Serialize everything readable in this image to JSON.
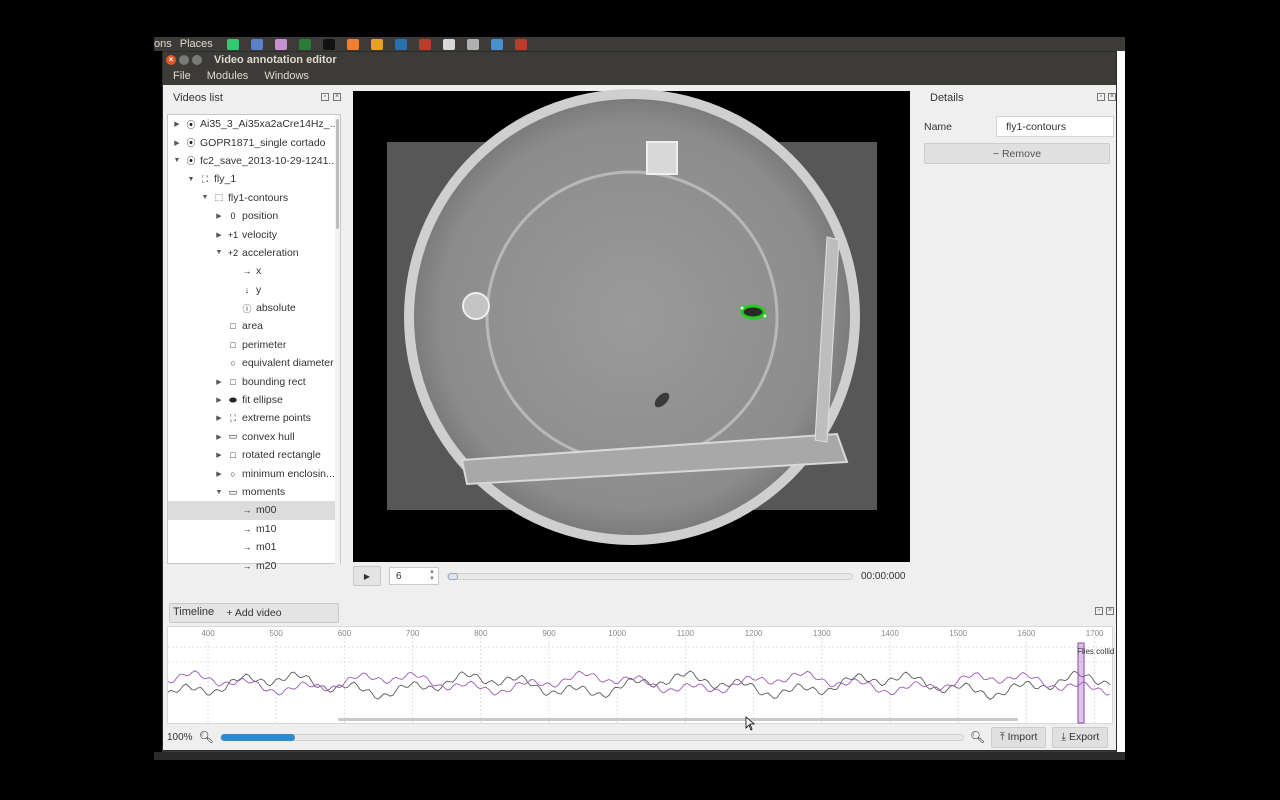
{
  "top_panel": {
    "menus": [
      "ons",
      "Places"
    ]
  },
  "window": {
    "title": "Video annotation editor"
  },
  "menubar": {
    "items": [
      "File",
      "Modules",
      "Windows"
    ]
  },
  "videos_panel": {
    "title": "Videos list",
    "add_video_label": "+ Add video",
    "tree": [
      {
        "label": "Ai35_3_Ai35xa2aCre14Hz_...",
        "depth": 0,
        "arrow": "right",
        "icon": "target-icon"
      },
      {
        "label": "GOPR1871_single cortado",
        "depth": 0,
        "arrow": "right",
        "icon": "target-icon"
      },
      {
        "label": "fc2_save_2013-10-29-1241...",
        "depth": 0,
        "arrow": "down",
        "icon": "target-icon"
      },
      {
        "label": "fly_1",
        "depth": 1,
        "arrow": "down",
        "icon": "fly-icon"
      },
      {
        "label": "fly1-contours",
        "depth": 2,
        "arrow": "down",
        "icon": "contour-icon"
      },
      {
        "label": "position",
        "depth": 3,
        "arrow": "right",
        "icon": "zero-icon"
      },
      {
        "label": "velocity",
        "depth": 3,
        "arrow": "right",
        "icon": "plus-one-icon"
      },
      {
        "label": "acceleration",
        "depth": 3,
        "arrow": "down",
        "icon": "plus-two-icon"
      },
      {
        "label": "x",
        "depth": 4,
        "arrow": "",
        "icon": "arrow-right-icon"
      },
      {
        "label": "y",
        "depth": 4,
        "arrow": "",
        "icon": "arrow-down-icon"
      },
      {
        "label": "absolute",
        "depth": 4,
        "arrow": "",
        "icon": "absolute-icon"
      },
      {
        "label": "area",
        "depth": 3,
        "arrow": "",
        "icon": "square-icon"
      },
      {
        "label": "perimeter",
        "depth": 3,
        "arrow": "",
        "icon": "square-icon"
      },
      {
        "label": "equivalent diameter",
        "depth": 3,
        "arrow": "",
        "icon": "circle-icon"
      },
      {
        "label": "bounding rect",
        "depth": 3,
        "arrow": "right",
        "icon": "square-icon"
      },
      {
        "label": "fit ellipse",
        "depth": 3,
        "arrow": "right",
        "icon": "ellipse-icon"
      },
      {
        "label": "extreme points",
        "depth": 3,
        "arrow": "right",
        "icon": "points-icon"
      },
      {
        "label": "convex hull",
        "depth": 3,
        "arrow": "right",
        "icon": "hull-icon"
      },
      {
        "label": "rotated rectangle",
        "depth": 3,
        "arrow": "right",
        "icon": "square-icon"
      },
      {
        "label": "minimum enclosin...",
        "depth": 3,
        "arrow": "right",
        "icon": "circle-icon"
      },
      {
        "label": "moments",
        "depth": 3,
        "arrow": "down",
        "icon": "hull-icon"
      },
      {
        "label": "m00",
        "depth": 4,
        "arrow": "",
        "icon": "arrow-right-icon",
        "selected": true
      },
      {
        "label": "m10",
        "depth": 4,
        "arrow": "",
        "icon": "arrow-right-icon"
      },
      {
        "label": "m01",
        "depth": 4,
        "arrow": "",
        "icon": "arrow-right-icon"
      },
      {
        "label": "m20",
        "depth": 4,
        "arrow": "",
        "icon": "arrow-right-icon"
      }
    ]
  },
  "player": {
    "frame_value": "6",
    "time_label": "00:00:000",
    "seek_progress": 0.0
  },
  "details_panel": {
    "title": "Details",
    "name_label": "Name",
    "name_value": "fly1-contours",
    "remove_label": "− Remove"
  },
  "timeline": {
    "title": "Timeline",
    "ticks": [
      "400",
      "500",
      "600",
      "700",
      "800",
      "900",
      "1000",
      "1100",
      "1200",
      "1300",
      "1400",
      "1500",
      "1600",
      "1700"
    ],
    "event_label": "Flies collid",
    "zoom_label": "100%",
    "zoom_fraction": 0.1,
    "import_label": "Import",
    "export_label": "Export"
  },
  "colors": {
    "accent": "#2a8bd0",
    "series_a": "#5a5a5a",
    "series_b": "#9b59b6",
    "track_green": "#22cc22"
  }
}
